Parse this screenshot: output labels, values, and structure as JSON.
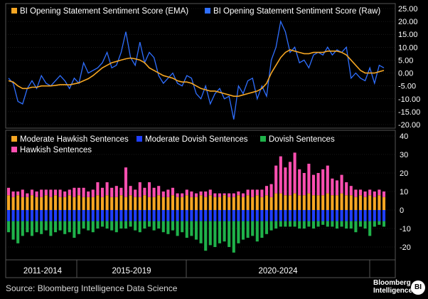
{
  "footer": {
    "source": "Source: Bloomberg Intelligence Data Science",
    "logo_line1": "Bloomberg",
    "logo_line2": "Intelligence",
    "logo_mark": "BI"
  },
  "colors": {
    "ema": "#f5a623",
    "raw": "#2f6fff",
    "moderate_hawkish": "#f5a623",
    "moderate_dovish": "#1f3fff",
    "dovish": "#1fb24a",
    "hawkish": "#ff4fb0"
  },
  "chart_data": [
    {
      "type": "line",
      "title": "",
      "legend": [
        "BI Opening Statement Sentiment Score (EMA)",
        "BI Opening Statement Sentiment Score (Raw)"
      ],
      "ylim": [
        -20,
        25
      ],
      "yticks": [
        "25.00",
        "20.00",
        "15.00",
        "10.00",
        "5.00",
        "0.00",
        "-5.00",
        "-10.00",
        "-15.00",
        "-20.00"
      ],
      "ytick_values": [
        25,
        20,
        15,
        10,
        5,
        0,
        -5,
        -10,
        -15,
        -20
      ],
      "x": [
        0,
        1,
        2,
        3,
        4,
        5,
        6,
        7,
        8,
        9,
        10,
        11,
        12,
        13,
        14,
        15,
        16,
        17,
        18,
        19,
        20,
        21,
        22,
        23,
        24,
        25,
        26,
        27,
        28,
        29,
        30,
        31,
        32,
        33,
        34,
        35,
        36,
        37,
        38,
        39,
        40,
        41,
        42,
        43,
        44,
        45,
        46,
        47,
        48,
        49,
        50,
        51,
        52,
        53,
        54,
        55,
        56,
        57,
        58,
        59,
        60,
        61,
        62,
        63,
        64,
        65,
        66,
        67,
        68,
        69,
        70,
        71,
        72,
        73,
        74,
        75,
        76,
        77,
        78,
        79,
        80
      ],
      "series": [
        {
          "name": "BI Opening Statement Sentiment Score (Raw)",
          "values": [
            -2,
            -4,
            -11,
            -12,
            -6,
            -3,
            -6,
            -1,
            -4,
            -5,
            -3,
            -1,
            -3,
            -6,
            -2,
            -4,
            4,
            0,
            1,
            2,
            4,
            8,
            2,
            3,
            8,
            16,
            6,
            3,
            12,
            4,
            8,
            6,
            -1,
            -4,
            -2,
            0,
            -4,
            -5,
            -1,
            -2,
            -8,
            -10,
            -5,
            -12,
            -8,
            -6,
            -10,
            -9,
            -18,
            -5,
            -8,
            -3,
            -2,
            -10,
            -5,
            -9,
            5,
            10,
            20,
            16,
            8,
            10,
            4,
            5,
            2,
            7,
            8,
            7,
            10,
            7,
            9,
            8,
            10,
            -2,
            0,
            -2,
            -3,
            2,
            -4,
            3,
            2
          ]
        },
        {
          "name": "BI Opening Statement Sentiment Score (EMA)",
          "values": [
            -3,
            -3.5,
            -5,
            -6,
            -6,
            -5.5,
            -5.5,
            -5,
            -5,
            -5,
            -4.8,
            -4.5,
            -4.5,
            -4.6,
            -4.2,
            -3.8,
            -3,
            -2.2,
            -1,
            0.5,
            2,
            3,
            4,
            4.5,
            5,
            5.5,
            5.8,
            5.5,
            5,
            4,
            2,
            1,
            0,
            -1,
            -1.5,
            -2,
            -3,
            -3.5,
            -3.5,
            -4,
            -5,
            -6,
            -6.5,
            -7,
            -7,
            -7.5,
            -8,
            -8.5,
            -9,
            -9,
            -8.5,
            -8,
            -7.5,
            -7,
            -6,
            -4,
            0,
            3,
            6,
            8,
            9,
            8.5,
            8,
            7.5,
            7.5,
            8,
            8,
            8,
            8.5,
            8.5,
            8.5,
            8,
            7,
            5,
            3,
            1,
            0,
            0,
            0,
            0.5,
            1
          ]
        }
      ]
    },
    {
      "type": "bar",
      "stacked": true,
      "legend": [
        "Moderate Hawkish Sentences",
        "Moderate Dovish Sentences",
        "Dovish Sentences",
        "Hawkish Sentences"
      ],
      "ylim": [
        -25,
        42
      ],
      "yticks": [
        "40",
        "30",
        "20",
        "10",
        "0",
        "-10",
        "-20"
      ],
      "ytick_values": [
        40,
        30,
        20,
        10,
        0,
        -10,
        -20
      ],
      "period_labels": [
        "2011-2014",
        "2015-2019",
        "2020-2024"
      ],
      "x": [
        0,
        1,
        2,
        3,
        4,
        5,
        6,
        7,
        8,
        9,
        10,
        11,
        12,
        13,
        14,
        15,
        16,
        17,
        18,
        19,
        20,
        21,
        22,
        23,
        24,
        25,
        26,
        27,
        28,
        29,
        30,
        31,
        32,
        33,
        34,
        35,
        36,
        37,
        38,
        39,
        40,
        41,
        42,
        43,
        44,
        45,
        46,
        47,
        48,
        49,
        50,
        51,
        52,
        53,
        54,
        55,
        56,
        57,
        58,
        59,
        60,
        61,
        62,
        63,
        64,
        65,
        66,
        67,
        68,
        69,
        70,
        71,
        72,
        73,
        74,
        75,
        76,
        77,
        78,
        79,
        80
      ],
      "series": [
        {
          "name": "Moderate Hawkish Sentences",
          "values": [
            8,
            7,
            8,
            7,
            7,
            8,
            7,
            7,
            8,
            7,
            8,
            7,
            7,
            8,
            7,
            8,
            7,
            7,
            7,
            8,
            7,
            8,
            7,
            7,
            8,
            7,
            8,
            7,
            7,
            8,
            7,
            7,
            8,
            7,
            7,
            8,
            7,
            7,
            8,
            7,
            7,
            8,
            7,
            8,
            7,
            7,
            8,
            7,
            7,
            8,
            7,
            8,
            7,
            8,
            7,
            8,
            7,
            9,
            9,
            8,
            8,
            9,
            8,
            8,
            9,
            8,
            8,
            8,
            9,
            8,
            8,
            9,
            8,
            8,
            7,
            8,
            7,
            8,
            7,
            8,
            7
          ]
        },
        {
          "name": "Hawkish Sentences",
          "values": [
            4,
            3,
            2,
            4,
            2,
            3,
            3,
            4,
            3,
            4,
            3,
            4,
            3,
            3,
            5,
            4,
            5,
            3,
            4,
            7,
            5,
            7,
            5,
            6,
            4,
            16,
            5,
            4,
            8,
            4,
            8,
            5,
            5,
            3,
            4,
            4,
            2,
            2,
            3,
            3,
            2,
            2,
            3,
            3,
            2,
            2,
            1,
            2,
            2,
            2,
            2,
            3,
            4,
            3,
            4,
            5,
            7,
            15,
            20,
            15,
            18,
            22,
            14,
            12,
            16,
            11,
            12,
            14,
            15,
            9,
            8,
            10,
            7,
            5,
            4,
            3,
            3,
            3,
            3,
            3,
            3
          ]
        },
        {
          "name": "Moderate Dovish Sentences",
          "values": [
            -6,
            -6,
            -6,
            -6,
            -6,
            -6,
            -6,
            -6,
            -6,
            -6,
            -6,
            -6,
            -6,
            -6,
            -6,
            -6,
            -6,
            -6,
            -6,
            -6,
            -6,
            -6,
            -6,
            -6,
            -6,
            -6,
            -6,
            -6,
            -6,
            -6,
            -6,
            -6,
            -6,
            -6,
            -6,
            -6,
            -6,
            -6,
            -6,
            -6,
            -6,
            -6,
            -6,
            -6,
            -6,
            -6,
            -6,
            -6,
            -6,
            -6,
            -6,
            -6,
            -6,
            -6,
            -6,
            -6,
            -6,
            -6,
            -6,
            -6,
            -6,
            -6,
            -6,
            -6,
            -6,
            -6,
            -6,
            -6,
            -6,
            -6,
            -6,
            -6,
            -6,
            -6,
            -6,
            -6,
            -6,
            -6,
            -6,
            -6,
            -6
          ]
        },
        {
          "name": "Dovish Sentences",
          "values": [
            -6,
            -10,
            -12,
            -8,
            -6,
            -8,
            -6,
            -7,
            -5,
            -8,
            -6,
            -5,
            -7,
            -6,
            -9,
            -7,
            -4,
            -5,
            -6,
            -4,
            -3,
            -4,
            -5,
            -6,
            -4,
            -4,
            -3,
            -5,
            -6,
            -4,
            -3,
            -5,
            -4,
            -6,
            -7,
            -5,
            -8,
            -6,
            -9,
            -8,
            -10,
            -12,
            -16,
            -13,
            -14,
            -12,
            -11,
            -14,
            -17,
            -12,
            -10,
            -9,
            -8,
            -11,
            -9,
            -7,
            -5,
            -4,
            -3,
            -3,
            -3,
            -3,
            -4,
            -4,
            -3,
            -4,
            -3,
            -2,
            -3,
            -3,
            -4,
            -3,
            -4,
            -4,
            -6,
            -3,
            -4,
            -8,
            -3,
            -2,
            -3
          ]
        }
      ]
    }
  ]
}
